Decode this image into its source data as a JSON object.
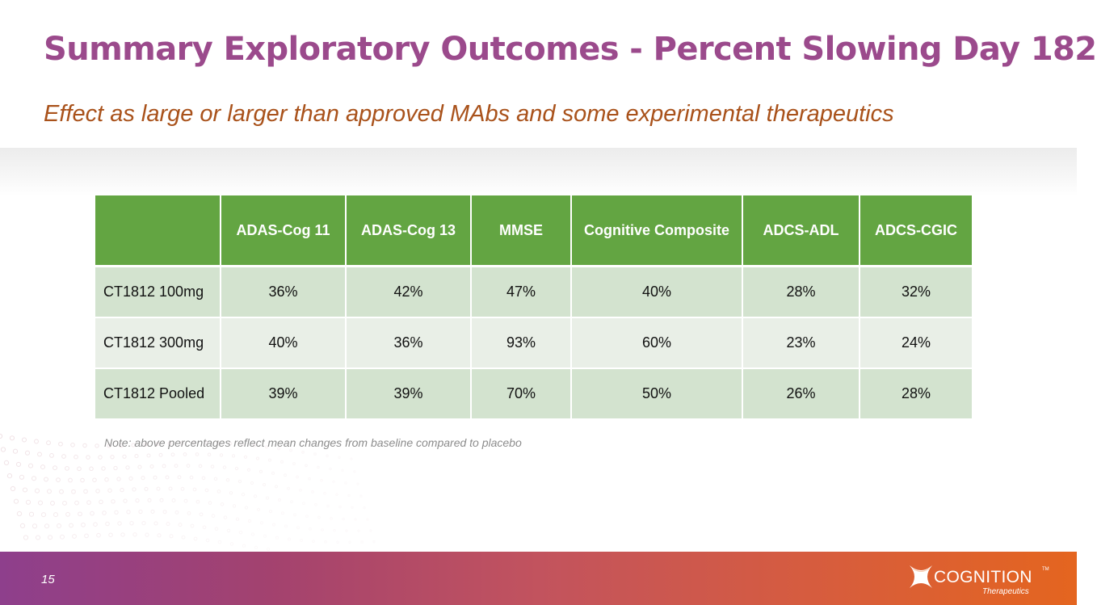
{
  "slide": {
    "title": "Summary Exploratory Outcomes - Percent Slowing Day 182",
    "subtitle": "Effect as large or larger than approved MAbs and some experimental therapeutics",
    "note": "Note: above percentages reflect mean changes from baseline compared to placebo",
    "page_number": "15"
  },
  "table": {
    "headers": [
      "",
      "ADAS-Cog 11",
      "ADAS-Cog 13",
      "MMSE",
      "Cognitive Composite",
      "ADCS-ADL",
      "ADCS-CGIC"
    ],
    "rows": [
      {
        "label": "CT1812 100mg",
        "values": [
          "36%",
          "42%",
          "47%",
          "40%",
          "28%",
          "32%"
        ]
      },
      {
        "label": "CT1812 300mg",
        "values": [
          "40%",
          "36%",
          "93%",
          "60%",
          "23%",
          "24%"
        ]
      },
      {
        "label": "CT1812 Pooled",
        "values": [
          "39%",
          "39%",
          "70%",
          "50%",
          "26%",
          "28%"
        ]
      }
    ]
  },
  "footer": {
    "logo_icon": "cognition-x-logo-icon",
    "logo_word": "COGNITION",
    "logo_tm": "TM",
    "logo_sub": "Therapeutics"
  },
  "colors": {
    "title": "#9b4a8c",
    "subtitle": "#a9521b",
    "table_header": "#63a542",
    "row_odd": "#d3e3cf",
    "row_even": "#e9efe7",
    "footer_start": "#8e3f8c",
    "footer_end": "#e4651f"
  }
}
